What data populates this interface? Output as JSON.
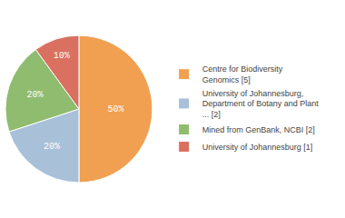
{
  "chart_data": {
    "type": "pie",
    "categories": [
      "Centre for Biodiversity\nGenomics [5]",
      "University of Johannesburg,\nDepartment of Botany and Plant\n... [2]",
      "Mined from GenBank, NCBI [2]",
      "University of Johannesburg [1]"
    ],
    "values": [
      50,
      20,
      20,
      10
    ],
    "value_labels": [
      "50%",
      "20%",
      "20%",
      "10%"
    ],
    "colors": [
      "#f0a050",
      "#a8c0d8",
      "#8fbc6f",
      "#d97060"
    ],
    "legend": "right",
    "data_labels": true
  }
}
